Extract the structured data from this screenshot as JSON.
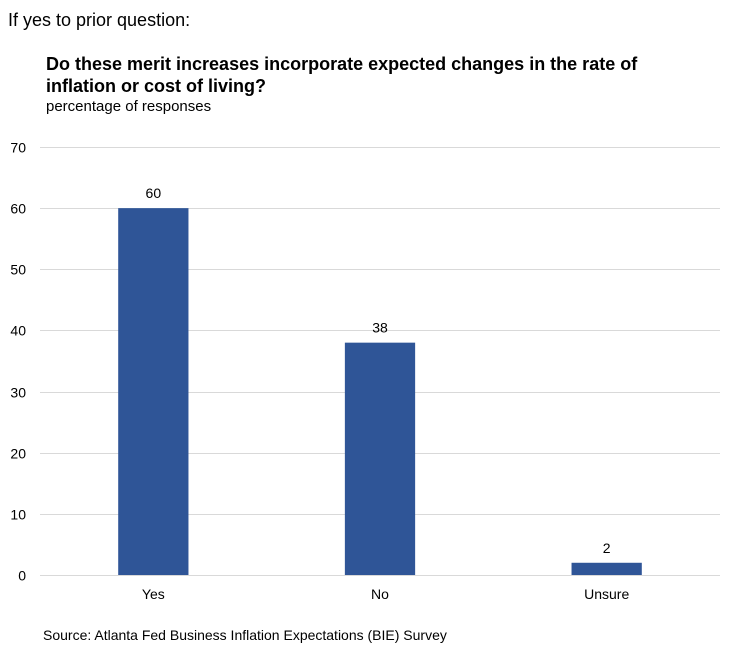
{
  "preheader": "If yes to prior question:",
  "source": "Source: Atlanta Fed Business Inflation Expectations (BIE) Survey",
  "chart_data": {
    "type": "bar",
    "title": "Do these merit increases incorporate expected changes in the rate of inflation or cost of living?",
    "subtitle": "percentage of responses",
    "categories": [
      "Yes",
      "No",
      "Unsure"
    ],
    "values": [
      60,
      38,
      2
    ],
    "data_labels": [
      "60",
      "38",
      "2"
    ],
    "ylim": [
      0,
      70
    ],
    "yticks": [
      0,
      10,
      20,
      30,
      40,
      50,
      60,
      70
    ],
    "xlabel": "",
    "ylabel": "",
    "grid": true,
    "legend": "none",
    "bar_color": "#2F5597",
    "grid_color": "#D9D9D9"
  }
}
